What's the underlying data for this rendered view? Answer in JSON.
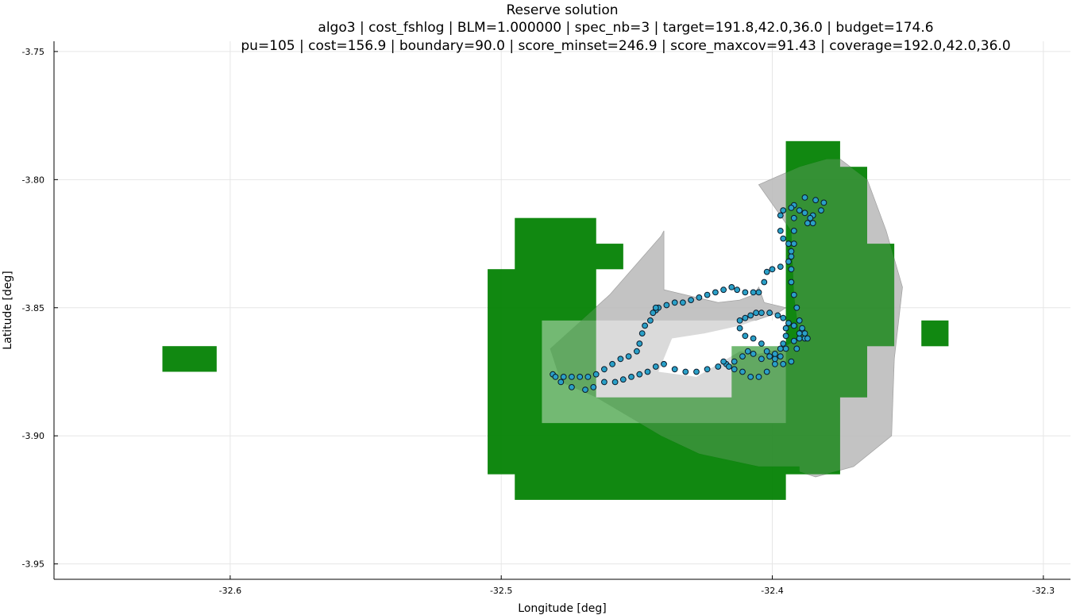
{
  "chart_data": {
    "type": "scatter",
    "title": "Reserve solution",
    "subtitle_line1": "algo3 | cost_fshlog | BLM=1.000000 | spec_nb=3 | target=191.8,42.0,36.0 | budget=174.6",
    "subtitle_line2": "pu=105 | cost=156.9 | boundary=90.0 | score_minset=246.9 | score_maxcov=91.43 | coverage=192.0,42.0,36.0",
    "xlabel": "Longitude [deg]",
    "ylabel": "Latitude [deg]",
    "xlim": [
      -32.665,
      -32.29
    ],
    "ylim": [
      -3.956,
      -3.746
    ],
    "xticks": [
      -32.6,
      -32.5,
      -32.4,
      -32.3
    ],
    "xtick_labels": [
      "-32.6",
      "-32.5",
      "-32.4",
      "-32.3"
    ],
    "yticks": [
      -3.75,
      -3.8,
      -3.85,
      -3.9,
      -3.95
    ],
    "ytick_labels": [
      "-3.75",
      "-3.80",
      "-3.85",
      "-3.90",
      "-3.95"
    ],
    "grid": true,
    "legend": "none",
    "colors": {
      "reserve": "#008000",
      "hull": "#bbbbbb",
      "points": "#2aa0c8",
      "point_edge": "#0a1a2a",
      "grid": "#e6e6e6"
    },
    "reserve_polygons": [
      [
        [
          -32.625,
          -3.865
        ],
        [
          -32.605,
          -3.865
        ],
        [
          -32.605,
          -3.875
        ],
        [
          -32.625,
          -3.875
        ]
      ],
      [
        [
          -32.345,
          -3.855
        ],
        [
          -32.335,
          -3.855
        ],
        [
          -32.335,
          -3.865
        ],
        [
          -32.345,
          -3.865
        ]
      ],
      [
        [
          -32.495,
          -3.815
        ],
        [
          -32.465,
          -3.815
        ],
        [
          -32.465,
          -3.825
        ],
        [
          -32.455,
          -3.825
        ],
        [
          -32.455,
          -3.835
        ],
        [
          -32.465,
          -3.835
        ],
        [
          -32.465,
          -3.885
        ],
        [
          -32.415,
          -3.885
        ],
        [
          -32.415,
          -3.865
        ],
        [
          -32.395,
          -3.865
        ],
        [
          -32.395,
          -3.785
        ],
        [
          -32.375,
          -3.785
        ],
        [
          -32.375,
          -3.795
        ],
        [
          -32.365,
          -3.795
        ],
        [
          -32.365,
          -3.825
        ],
        [
          -32.355,
          -3.825
        ],
        [
          -32.355,
          -3.865
        ],
        [
          -32.365,
          -3.865
        ],
        [
          -32.365,
          -3.885
        ],
        [
          -32.375,
          -3.885
        ],
        [
          -32.375,
          -3.915
        ],
        [
          -32.395,
          -3.915
        ],
        [
          -32.395,
          -3.925
        ],
        [
          -32.495,
          -3.925
        ],
        [
          -32.495,
          -3.915
        ],
        [
          -32.505,
          -3.915
        ],
        [
          -32.505,
          -3.835
        ],
        [
          -32.495,
          -3.835
        ]
      ],
      [
        [
          -32.485,
          -3.855
        ],
        [
          -32.395,
          -3.855
        ],
        [
          -32.395,
          -3.895
        ],
        [
          -32.485,
          -3.895
        ]
      ]
    ],
    "hull_polygon": [
      [
        -32.405,
        -3.802
      ],
      [
        -32.39,
        -3.795
      ],
      [
        -32.38,
        -3.792
      ],
      [
        -32.375,
        -3.792
      ],
      [
        -32.365,
        -3.8
      ],
      [
        -32.358,
        -3.82
      ],
      [
        -32.352,
        -3.842
      ],
      [
        -32.355,
        -3.87
      ],
      [
        -32.356,
        -3.9
      ],
      [
        -32.37,
        -3.912
      ],
      [
        -32.384,
        -3.916
      ],
      [
        -32.39,
        -3.914
      ],
      [
        -32.39,
        -3.912
      ],
      [
        -32.405,
        -3.912
      ],
      [
        -32.427,
        -3.907
      ],
      [
        -32.441,
        -3.9
      ],
      [
        -32.465,
        -3.885
      ],
      [
        -32.478,
        -3.879
      ],
      [
        -32.482,
        -3.866
      ],
      [
        -32.46,
        -3.845
      ],
      [
        -32.441,
        -3.822
      ],
      [
        -32.44,
        -3.82
      ],
      [
        -32.44,
        -3.843
      ],
      [
        -32.428,
        -3.846
      ],
      [
        -32.42,
        -3.848
      ],
      [
        -32.412,
        -3.847
      ],
      [
        -32.407,
        -3.845
      ],
      [
        -32.405,
        -3.842
      ],
      [
        -32.403,
        -3.848
      ],
      [
        -32.395,
        -3.85
      ],
      [
        -32.398,
        -3.852
      ],
      [
        -32.412,
        -3.857
      ],
      [
        -32.425,
        -3.86
      ],
      [
        -32.437,
        -3.862
      ],
      [
        -32.442,
        -3.875
      ],
      [
        -32.428,
        -3.877
      ],
      [
        -32.42,
        -3.872
      ],
      [
        -32.412,
        -3.867
      ],
      [
        -32.405,
        -3.868
      ],
      [
        -32.397,
        -3.866
      ],
      [
        -32.39,
        -3.862
      ],
      [
        -32.392,
        -3.845
      ],
      [
        -32.393,
        -3.82
      ]
    ],
    "points": [
      [
        -32.481,
        -3.876
      ],
      [
        -32.478,
        -3.879
      ],
      [
        -32.474,
        -3.881
      ],
      [
        -32.469,
        -3.882
      ],
      [
        -32.466,
        -3.881
      ],
      [
        -32.462,
        -3.879
      ],
      [
        -32.458,
        -3.879
      ],
      [
        -32.455,
        -3.878
      ],
      [
        -32.452,
        -3.877
      ],
      [
        -32.449,
        -3.876
      ],
      [
        -32.446,
        -3.875
      ],
      [
        -32.443,
        -3.873
      ],
      [
        -32.44,
        -3.872
      ],
      [
        -32.436,
        -3.874
      ],
      [
        -32.432,
        -3.875
      ],
      [
        -32.428,
        -3.875
      ],
      [
        -32.424,
        -3.874
      ],
      [
        -32.42,
        -3.873
      ],
      [
        -32.417,
        -3.872
      ],
      [
        -32.414,
        -3.874
      ],
      [
        -32.411,
        -3.875
      ],
      [
        -32.408,
        -3.877
      ],
      [
        -32.405,
        -3.877
      ],
      [
        -32.402,
        -3.875
      ],
      [
        -32.399,
        -3.872
      ],
      [
        -32.397,
        -3.869
      ],
      [
        -32.395,
        -3.866
      ],
      [
        -32.392,
        -3.863
      ],
      [
        -32.39,
        -3.862
      ],
      [
        -32.388,
        -3.862
      ],
      [
        -32.387,
        -3.862
      ],
      [
        -32.389,
        -3.859
      ],
      [
        -32.392,
        -3.857
      ],
      [
        -32.394,
        -3.856
      ],
      [
        -32.396,
        -3.854
      ],
      [
        -32.398,
        -3.853
      ],
      [
        -32.401,
        -3.852
      ],
      [
        -32.404,
        -3.852
      ],
      [
        -32.406,
        -3.852
      ],
      [
        -32.408,
        -3.853
      ],
      [
        -32.41,
        -3.854
      ],
      [
        -32.412,
        -3.855
      ],
      [
        -32.412,
        -3.858
      ],
      [
        -32.41,
        -3.861
      ],
      [
        -32.407,
        -3.862
      ],
      [
        -32.404,
        -3.864
      ],
      [
        -32.402,
        -3.867
      ],
      [
        -32.399,
        -3.87
      ],
      [
        -32.396,
        -3.872
      ],
      [
        -32.393,
        -3.871
      ],
      [
        -32.391,
        -3.866
      ],
      [
        -32.39,
        -3.86
      ],
      [
        -32.39,
        -3.855
      ],
      [
        -32.391,
        -3.85
      ],
      [
        -32.392,
        -3.845
      ],
      [
        -32.393,
        -3.84
      ],
      [
        -32.393,
        -3.835
      ],
      [
        -32.393,
        -3.83
      ],
      [
        -32.392,
        -3.825
      ],
      [
        -32.392,
        -3.82
      ],
      [
        -32.392,
        -3.815
      ],
      [
        -32.392,
        -3.81
      ],
      [
        -32.388,
        -3.807
      ],
      [
        -32.384,
        -3.808
      ],
      [
        -32.381,
        -3.809
      ],
      [
        -32.382,
        -3.812
      ],
      [
        -32.385,
        -3.814
      ],
      [
        -32.387,
        -3.817
      ],
      [
        -32.385,
        -3.817
      ],
      [
        -32.386,
        -3.815
      ],
      [
        -32.388,
        -3.813
      ],
      [
        -32.39,
        -3.812
      ],
      [
        -32.393,
        -3.811
      ],
      [
        -32.396,
        -3.812
      ],
      [
        -32.397,
        -3.814
      ],
      [
        -32.397,
        -3.82
      ],
      [
        -32.396,
        -3.823
      ],
      [
        -32.394,
        -3.825
      ],
      [
        -32.393,
        -3.828
      ],
      [
        -32.394,
        -3.832
      ],
      [
        -32.397,
        -3.834
      ],
      [
        -32.4,
        -3.835
      ],
      [
        -32.402,
        -3.836
      ],
      [
        -32.403,
        -3.84
      ],
      [
        -32.405,
        -3.844
      ],
      [
        -32.407,
        -3.844
      ],
      [
        -32.41,
        -3.844
      ],
      [
        -32.413,
        -3.843
      ],
      [
        -32.415,
        -3.842
      ],
      [
        -32.418,
        -3.843
      ],
      [
        -32.421,
        -3.844
      ],
      [
        -32.424,
        -3.845
      ],
      [
        -32.427,
        -3.846
      ],
      [
        -32.43,
        -3.847
      ],
      [
        -32.433,
        -3.848
      ],
      [
        -32.436,
        -3.848
      ],
      [
        -32.439,
        -3.849
      ],
      [
        -32.442,
        -3.85
      ],
      [
        -32.443,
        -3.851
      ],
      [
        -32.443,
        -3.85
      ],
      [
        -32.444,
        -3.852
      ],
      [
        -32.445,
        -3.855
      ],
      [
        -32.447,
        -3.857
      ],
      [
        -32.448,
        -3.86
      ],
      [
        -32.449,
        -3.864
      ],
      [
        -32.45,
        -3.867
      ],
      [
        -32.453,
        -3.869
      ],
      [
        -32.456,
        -3.87
      ],
      [
        -32.459,
        -3.872
      ],
      [
        -32.462,
        -3.874
      ],
      [
        -32.465,
        -3.876
      ],
      [
        -32.468,
        -3.877
      ],
      [
        -32.471,
        -3.877
      ],
      [
        -32.474,
        -3.877
      ],
      [
        -32.477,
        -3.877
      ],
      [
        -32.48,
        -3.877
      ],
      [
        -32.418,
        -3.871
      ],
      [
        -32.416,
        -3.873
      ],
      [
        -32.414,
        -3.871
      ],
      [
        -32.411,
        -3.869
      ],
      [
        -32.409,
        -3.867
      ],
      [
        -32.407,
        -3.868
      ],
      [
        -32.404,
        -3.87
      ],
      [
        -32.401,
        -3.869
      ],
      [
        -32.399,
        -3.868
      ],
      [
        -32.397,
        -3.866
      ],
      [
        -32.396,
        -3.864
      ],
      [
        -32.395,
        -3.861
      ],
      [
        -32.395,
        -3.858
      ],
      [
        -32.388,
        -3.86
      ],
      [
        -32.389,
        -3.858
      ]
    ]
  }
}
